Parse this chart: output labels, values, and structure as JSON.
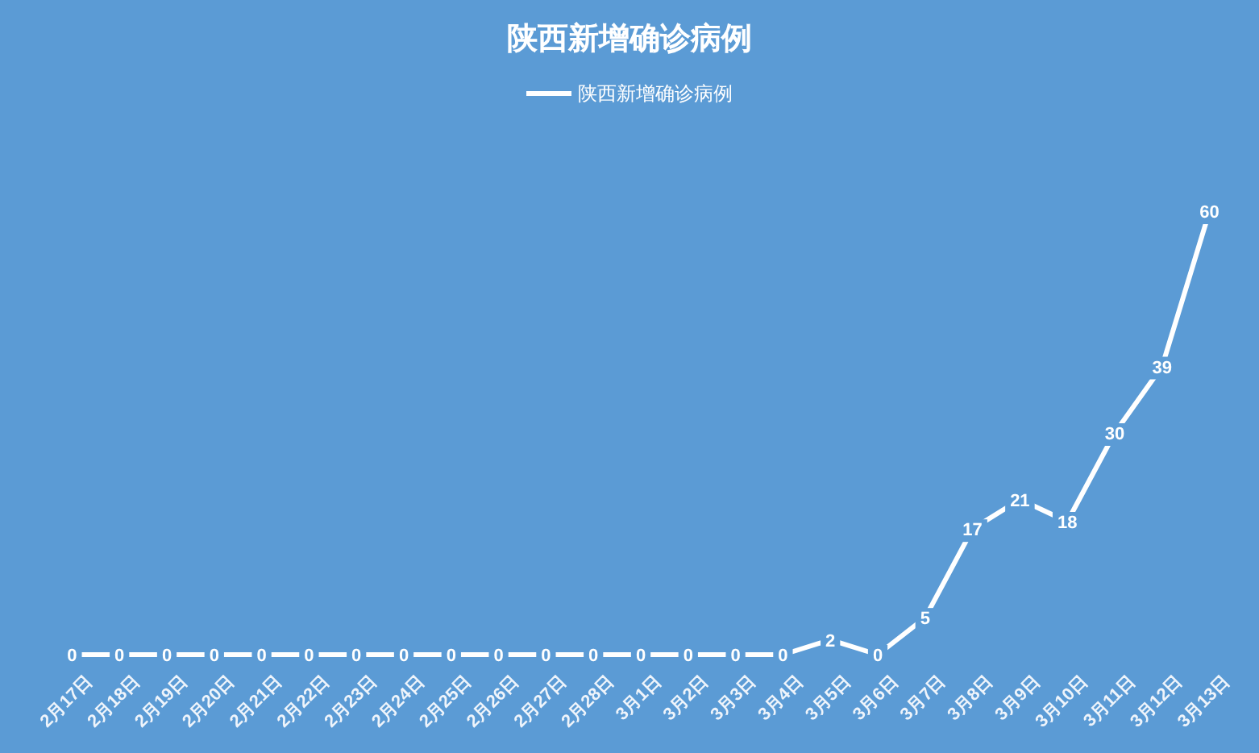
{
  "chart_data": {
    "type": "line",
    "title": "陕西新增确诊病例",
    "categories": [
      "2月17日",
      "2月18日",
      "2月19日",
      "2月20日",
      "2月21日",
      "2月22日",
      "2月23日",
      "2月24日",
      "2月25日",
      "2月26日",
      "2月27日",
      "2月28日",
      "3月1日",
      "3月2日",
      "3月3日",
      "3月4日",
      "3月5日",
      "3月6日",
      "3月7日",
      "3月8日",
      "3月9日",
      "3月10日",
      "3月11日",
      "3月12日",
      "3月13日"
    ],
    "series": [
      {
        "name": "陕西新增确诊病例",
        "color": "#ffffff",
        "values": [
          0,
          0,
          0,
          0,
          0,
          0,
          0,
          0,
          0,
          0,
          0,
          0,
          0,
          0,
          0,
          0,
          2,
          0,
          5,
          17,
          21,
          18,
          30,
          39,
          60
        ]
      }
    ],
    "data_labels": true,
    "legend": "top",
    "tick_labels": "x",
    "marker": "none",
    "line_style": "solid"
  }
}
